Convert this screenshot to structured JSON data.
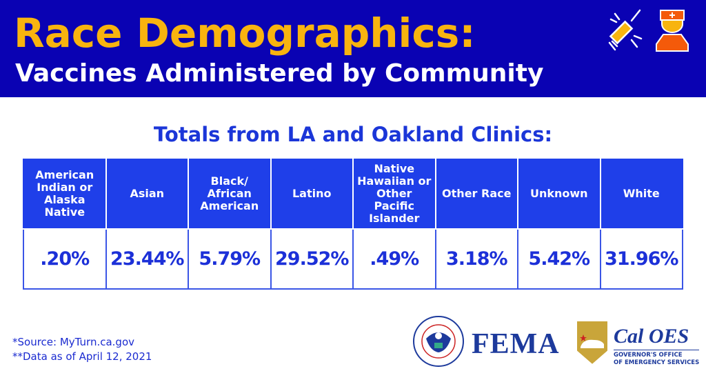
{
  "header": {
    "title": "Race Demographics:",
    "subtitle": "Vaccines Administered by Community",
    "icons": [
      "syringe-icon",
      "nurse-icon"
    ]
  },
  "table": {
    "title": "Totals from LA and Oakland Clinics:",
    "columns": [
      "American Indian or Alaska Native",
      "Asian",
      "Black/ African American",
      "Latino",
      "Native Hawaiian or Other Pacific Islander",
      "Other Race",
      "Unknown",
      "White"
    ],
    "values": [
      ".20%",
      "23.44%",
      "5.79%",
      "29.52%",
      ".49%",
      "3.18%",
      "5.42%",
      "31.96%"
    ]
  },
  "notes": {
    "source": "*Source: MyTurn.ca.gov",
    "data_date": "**Data as of April 12, 2021"
  },
  "logos": {
    "dhs_seal": "U.S. Department of Homeland Security",
    "fema": "FEMA",
    "caloes": "Cal OES",
    "caloes_sub_1": "GOVERNOR'S OFFICE",
    "caloes_sub_2": "OF EMERGENCY SERVICES"
  },
  "colors": {
    "banner": "#0a02b3",
    "title": "#f8b40f",
    "table_header": "#1f3fe9",
    "text_blue": "#1c30d8"
  }
}
